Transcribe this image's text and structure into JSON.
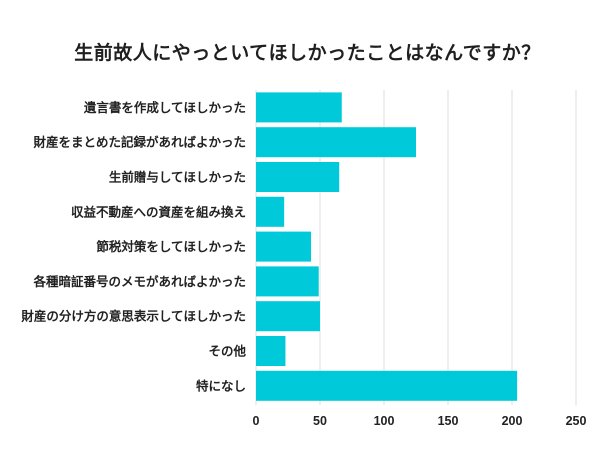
{
  "chart_data": {
    "type": "bar",
    "orientation": "horizontal",
    "title": "生前故人にやっといてほしかったことはなんですか？",
    "categories": [
      "遺言書を作成してほしかった",
      "財産をまとめた記録があればよかった",
      "生前贈与してほしかった",
      "収益不動産への資産を組み換え",
      "節税対策をしてほしかった",
      "各種暗証番号のメモがあればよかった",
      "財産の分け方の意思表示してほしかった",
      "その他",
      "特になし"
    ],
    "values": [
      67,
      125,
      65,
      22,
      43,
      49,
      50,
      23,
      204
    ],
    "xlim": [
      0,
      250
    ],
    "xticks": [
      0,
      50,
      100,
      150,
      200,
      250
    ],
    "grid": "vertical",
    "legend": "none",
    "bar_color": "#00c9d9",
    "grid_color": "#dddddd"
  }
}
